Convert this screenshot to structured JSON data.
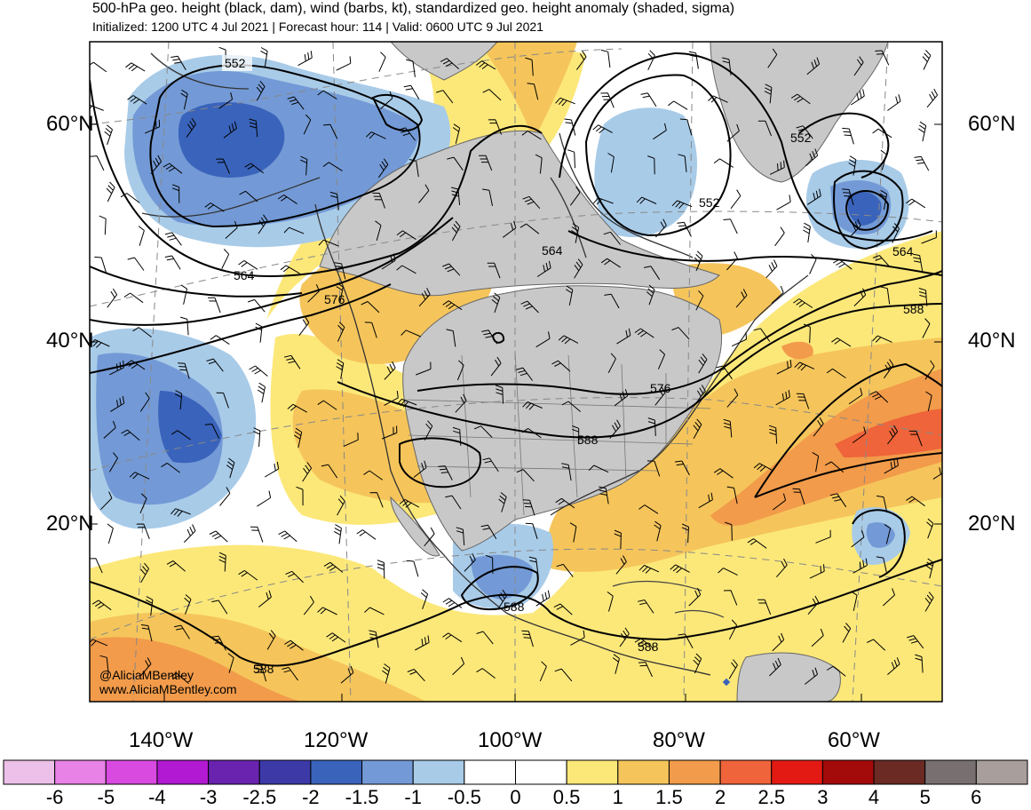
{
  "header": {
    "title": "500-hPa geo. height (black, dam), wind (barbs, kt), standardized geo. height anomaly (shaded, sigma)",
    "subtitle": "Initialized: 1200 UTC 4 Jul 2021 | Forecast hour: 114 | Valid: 0600 UTC 9 Jul 2021"
  },
  "axes": {
    "lat_left": [
      "60°N",
      "40°N",
      "20°N"
    ],
    "lat_right": [
      "60°N",
      "40°N",
      "20°N"
    ],
    "lon_bottom": [
      "140°W",
      "120°W",
      "100°W",
      "80°W",
      "60°W"
    ]
  },
  "contours": {
    "labels": [
      "552",
      "564",
      "576",
      "552",
      "552",
      "564",
      "564",
      "588",
      "576",
      "588",
      "588",
      "588",
      "588"
    ]
  },
  "credit": {
    "handle": "@AliciaMBentley",
    "site": "www.AliciaMBentley.com"
  },
  "colorbar": {
    "labels": [
      "-6",
      "-5",
      "-4",
      "-3",
      "-2.5",
      "-2",
      "-1.5",
      "-1",
      "-0.5",
      "0",
      "0.5",
      "1",
      "1.5",
      "2",
      "2.5",
      "3",
      "4",
      "5",
      "6"
    ],
    "colors": [
      "#ecc0e8",
      "#e882e6",
      "#d84ae0",
      "#b219d2",
      "#6a23ae",
      "#3d3aa8",
      "#3a63bb",
      "#739ad6",
      "#a8cbe8",
      "#ffffff",
      "#ffffff",
      "#fce879",
      "#f5c55b",
      "#f29b4a",
      "#ef643a",
      "#e31a14",
      "#a30a0a",
      "#6b2a24",
      "#787070",
      "#a89f9d"
    ]
  },
  "colors": {
    "land_neutral": "#c8c8c8",
    "neg_weak": "#a8cbe8",
    "neg_mid": "#739ad6",
    "neg_strong": "#3a63bb",
    "pos_weak": "#fce879",
    "pos_mid": "#f5c55b",
    "pos_strong": "#f29b4a",
    "pos_vstrong": "#ef643a"
  }
}
